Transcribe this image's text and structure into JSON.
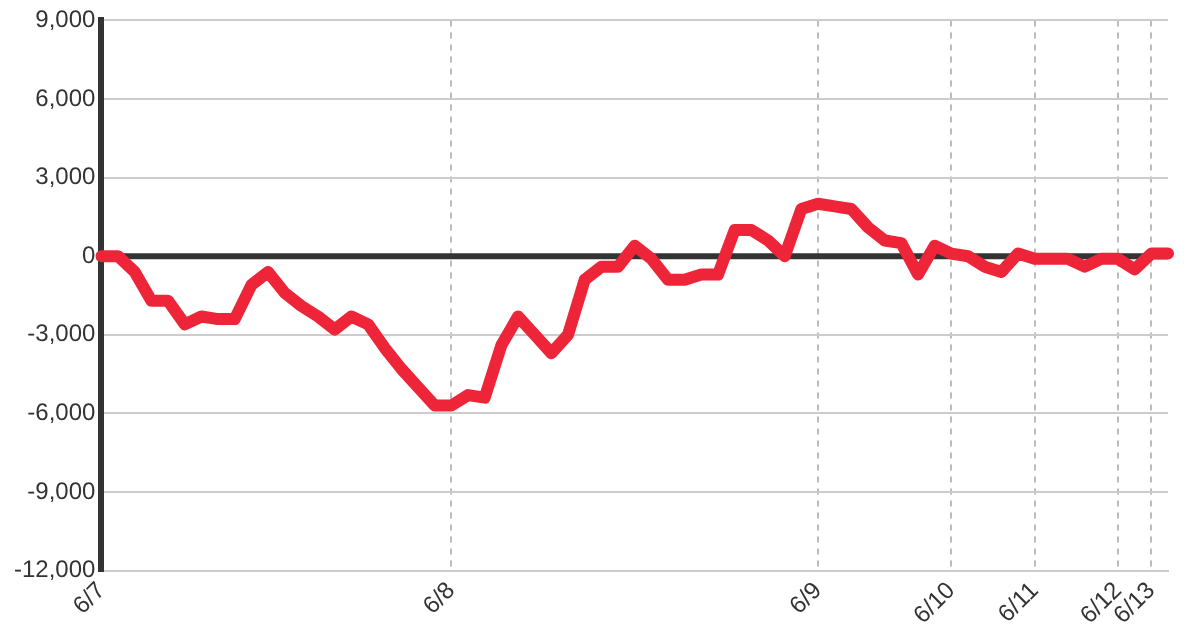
{
  "chart_data": {
    "type": "line",
    "categories": [
      "6/7",
      null,
      null,
      null,
      null,
      null,
      null,
      null,
      null,
      null,
      null,
      null,
      null,
      null,
      null,
      null,
      null,
      null,
      null,
      null,
      null,
      "6/8",
      null,
      null,
      null,
      null,
      null,
      null,
      null,
      null,
      null,
      null,
      null,
      null,
      null,
      null,
      null,
      null,
      null,
      null,
      null,
      null,
      null,
      "6/9",
      null,
      null,
      null,
      null,
      null,
      null,
      null,
      "6/10",
      null,
      null,
      null,
      null,
      "6/11",
      null,
      null,
      null,
      null,
      "6/12",
      null,
      "6/13",
      null
    ],
    "series": [
      {
        "color": "#ee2538",
        "values": [
          0,
          0,
          -600,
          -1700,
          -1700,
          -2600,
          -2300,
          -2400,
          -2400,
          -1100,
          -600,
          -1400,
          -1900,
          -2300,
          -2800,
          -2300,
          -2600,
          -3500,
          -4300,
          -5000,
          -5700,
          -5700,
          -5300,
          -5400,
          -3400,
          -2300,
          -3000,
          -3700,
          -3000,
          -900,
          -400,
          -400,
          400,
          -100,
          -900,
          -900,
          -700,
          -700,
          1000,
          1000,
          600,
          0,
          1800,
          2000,
          1900,
          1800,
          1100,
          600,
          500,
          -700,
          400,
          100,
          0,
          -400,
          -600,
          100,
          -100,
          -100,
          -100,
          -400,
          -100,
          -100,
          -500,
          100,
          100
        ]
      }
    ],
    "ylim": [
      -12000,
      9000
    ],
    "yticks": [
      {
        "value": 9000,
        "label": "9,000"
      },
      {
        "value": 6000,
        "label": "6,000"
      },
      {
        "value": 3000,
        "label": "3,000"
      },
      0,
      {
        "value": -3000,
        "label": "-3,000"
      },
      {
        "value": -6000,
        "label": "-6,000"
      },
      {
        "value": -9000,
        "label": "-9,000"
      },
      {
        "value": -12000,
        "label": "-12,000"
      }
    ],
    "grid": true,
    "marker": "none",
    "line_style": "solid",
    "legend": false,
    "ref_lines": [
      {
        "axis": "y",
        "value": 0,
        "color": "#333333"
      }
    ]
  }
}
